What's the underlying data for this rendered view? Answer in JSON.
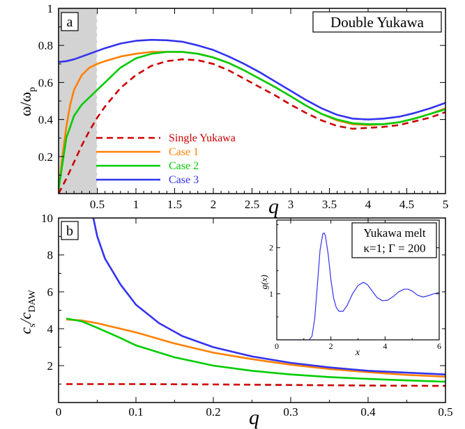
{
  "chart_data": [
    {
      "panel": "a",
      "type": "line",
      "title": "Double Yukawa",
      "xlabel": "q",
      "ylabel": "ω/ω",
      "ylabel_sub": "p",
      "xlim": [
        0,
        5
      ],
      "ylim": [
        0,
        1
      ],
      "xticks": [
        "0.5",
        "1",
        "1.5",
        "2",
        "2.5",
        "3",
        "3.5",
        "4",
        "4.5",
        "5"
      ],
      "yticks": [
        "0.2",
        "0.4",
        "0.6",
        "0.8",
        "1"
      ],
      "shaded_region": [
        0,
        0.5
      ],
      "legend_position": "lower-left",
      "series": [
        {
          "name": "Single Yukawa",
          "color": "#cc0000",
          "style": "dashed",
          "x": [
            0,
            0.1,
            0.2,
            0.3,
            0.4,
            0.5,
            0.6,
            0.8,
            1.0,
            1.2,
            1.4,
            1.6,
            1.8,
            2.0,
            2.2,
            2.4,
            2.6,
            2.8,
            3.0,
            3.2,
            3.4,
            3.6,
            3.8,
            4.0,
            4.2,
            4.4,
            4.6,
            4.8,
            5.0
          ],
          "y": [
            0.0,
            0.08,
            0.17,
            0.26,
            0.34,
            0.41,
            0.47,
            0.57,
            0.64,
            0.69,
            0.715,
            0.725,
            0.72,
            0.7,
            0.665,
            0.62,
            0.575,
            0.53,
            0.48,
            0.435,
            0.395,
            0.365,
            0.35,
            0.355,
            0.36,
            0.37,
            0.39,
            0.41,
            0.44
          ]
        },
        {
          "name": "Case 1",
          "color": "#ff8000",
          "style": "solid",
          "x": [
            0,
            0.05,
            0.1,
            0.15,
            0.2,
            0.3,
            0.4,
            0.5,
            0.6,
            0.8,
            1.0,
            1.2,
            1.4,
            1.6,
            1.8,
            2.0,
            2.2,
            2.4,
            2.6,
            2.8,
            3.0,
            3.2,
            3.4,
            3.6,
            3.8,
            4.0,
            4.2,
            4.4,
            4.6,
            4.8,
            5.0
          ],
          "y": [
            0.02,
            0.2,
            0.36,
            0.48,
            0.56,
            0.64,
            0.68,
            0.7,
            0.715,
            0.74,
            0.755,
            0.765,
            0.765,
            0.765,
            0.755,
            0.735,
            0.705,
            0.665,
            0.62,
            0.575,
            0.525,
            0.475,
            0.43,
            0.395,
            0.375,
            0.37,
            0.375,
            0.385,
            0.405,
            0.43,
            0.46
          ]
        },
        {
          "name": "Case 2",
          "color": "#00cc00",
          "style": "solid",
          "x": [
            0,
            0.05,
            0.1,
            0.2,
            0.3,
            0.4,
            0.5,
            0.6,
            0.8,
            1.0,
            1.2,
            1.4,
            1.6,
            1.8,
            2.0,
            2.2,
            2.4,
            2.6,
            2.8,
            3.0,
            3.2,
            3.4,
            3.6,
            3.8,
            4.0,
            4.2,
            4.4,
            4.6,
            4.8,
            5.0
          ],
          "y": [
            0.02,
            0.16,
            0.3,
            0.42,
            0.48,
            0.52,
            0.56,
            0.6,
            0.68,
            0.73,
            0.755,
            0.765,
            0.765,
            0.755,
            0.735,
            0.705,
            0.665,
            0.62,
            0.575,
            0.525,
            0.475,
            0.43,
            0.4,
            0.38,
            0.375,
            0.375,
            0.385,
            0.405,
            0.43,
            0.455
          ]
        },
        {
          "name": "Case 3",
          "color": "#3333ee",
          "style": "solid",
          "x": [
            0,
            0.1,
            0.2,
            0.3,
            0.4,
            0.5,
            0.6,
            0.8,
            1.0,
            1.2,
            1.4,
            1.6,
            1.8,
            2.0,
            2.2,
            2.4,
            2.6,
            2.8,
            3.0,
            3.2,
            3.4,
            3.6,
            3.8,
            4.0,
            4.2,
            4.4,
            4.6,
            4.8,
            5.0
          ],
          "y": [
            0.71,
            0.715,
            0.725,
            0.74,
            0.755,
            0.77,
            0.785,
            0.81,
            0.825,
            0.83,
            0.828,
            0.82,
            0.8,
            0.775,
            0.74,
            0.7,
            0.655,
            0.605,
            0.555,
            0.505,
            0.46,
            0.425,
            0.405,
            0.4,
            0.405,
            0.415,
            0.435,
            0.46,
            0.49
          ]
        }
      ]
    },
    {
      "panel": "b",
      "type": "line",
      "xlabel": "q",
      "ylabel": "c",
      "ylabel_sub1": "s",
      "ylabel_mid": "/c",
      "ylabel_sub2": "DAW",
      "xlim": [
        0,
        0.5
      ],
      "ylim": [
        0,
        10
      ],
      "xticks": [
        "0",
        "0.1",
        "0.2",
        "0.3",
        "0.4",
        "0.5"
      ],
      "yticks": [
        "2",
        "4",
        "6",
        "8",
        "10"
      ],
      "series": [
        {
          "name": "Single Yukawa",
          "color": "#cc0000",
          "style": "dashed",
          "x": [
            0.01,
            0.1,
            0.2,
            0.3,
            0.4,
            0.5
          ],
          "y": [
            1.0,
            1.0,
            0.98,
            0.95,
            0.92,
            0.9
          ]
        },
        {
          "name": "Case 1",
          "color": "#ff8000",
          "style": "solid",
          "x": [
            0.01,
            0.03,
            0.05,
            0.08,
            0.1,
            0.15,
            0.2,
            0.25,
            0.3,
            0.35,
            0.4,
            0.45,
            0.5
          ],
          "y": [
            4.5,
            4.45,
            4.3,
            4.0,
            3.8,
            3.2,
            2.7,
            2.35,
            2.05,
            1.82,
            1.65,
            1.5,
            1.4
          ]
        },
        {
          "name": "Case 2",
          "color": "#00cc00",
          "style": "solid",
          "x": [
            0.01,
            0.03,
            0.05,
            0.08,
            0.1,
            0.15,
            0.2,
            0.25,
            0.3,
            0.35,
            0.4,
            0.45,
            0.5
          ],
          "y": [
            4.55,
            4.4,
            4.05,
            3.5,
            3.1,
            2.45,
            2.0,
            1.72,
            1.52,
            1.38,
            1.28,
            1.2,
            1.13
          ]
        },
        {
          "name": "Case 3",
          "color": "#3333ee",
          "style": "solid",
          "x": [
            0.045,
            0.05,
            0.06,
            0.08,
            0.1,
            0.13,
            0.16,
            0.2,
            0.25,
            0.3,
            0.35,
            0.4,
            0.45,
            0.5
          ],
          "y": [
            10.0,
            9.0,
            7.8,
            6.4,
            5.3,
            4.3,
            3.6,
            3.0,
            2.5,
            2.15,
            1.9,
            1.72,
            1.62,
            1.52
          ]
        }
      ]
    },
    {
      "panel": "inset",
      "type": "line",
      "title_line1": "Yukawa melt",
      "title_line2": "κ=1; Γ = 200",
      "xlabel": "x",
      "ylabel": "g(x)",
      "xlim": [
        0,
        6
      ],
      "ylim": [
        0,
        2.6
      ],
      "xticks": [
        "0",
        "2",
        "4",
        "6"
      ],
      "yticks": [
        "1",
        "2"
      ],
      "series": [
        {
          "color": "#3333ee",
          "style": "solid",
          "x": [
            0,
            1.0,
            1.2,
            1.3,
            1.4,
            1.5,
            1.6,
            1.7,
            1.75,
            1.8,
            1.9,
            2.0,
            2.1,
            2.2,
            2.3,
            2.45,
            2.6,
            2.8,
            3.0,
            3.2,
            3.35,
            3.5,
            3.7,
            3.9,
            4.1,
            4.3,
            4.5,
            4.7,
            4.85,
            5.0,
            5.2,
            5.4,
            5.6,
            5.8,
            6.0
          ],
          "y": [
            0,
            0,
            0.0,
            0.08,
            0.45,
            1.2,
            1.95,
            2.3,
            2.32,
            2.25,
            1.85,
            1.3,
            0.9,
            0.7,
            0.62,
            0.62,
            0.75,
            1.0,
            1.18,
            1.25,
            1.2,
            1.08,
            0.92,
            0.85,
            0.86,
            0.94,
            1.04,
            1.1,
            1.1,
            1.06,
            0.97,
            0.93,
            0.96,
            1.0,
            1.03
          ]
        }
      ]
    }
  ],
  "colors": {
    "shade": "#d3d3d3",
    "axis": "#000000"
  }
}
